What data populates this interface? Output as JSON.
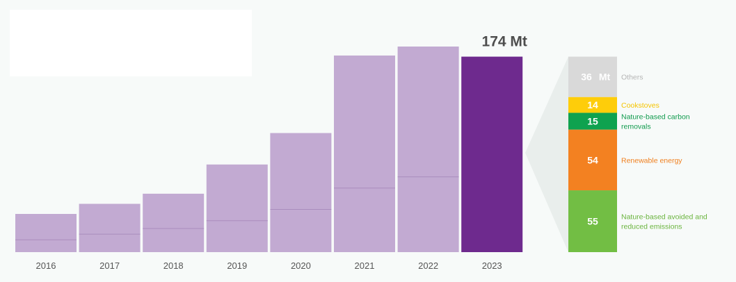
{
  "chart_data": [
    {
      "type": "bar",
      "categories": [
        "2016",
        "2017",
        "2018",
        "2019",
        "2020",
        "2021",
        "2022",
        "2023"
      ],
      "series": [
        {
          "values": [
            17,
            26,
            35,
            49,
            69,
            109,
            118,
            0
          ]
        },
        {
          "values": [
            11,
            16,
            21,
            28,
            38,
            57,
            67,
            0
          ]
        }
      ],
      "values": [
        34,
        43,
        52,
        78,
        106,
        175,
        183,
        174
      ],
      "highlight": {
        "category": "2023",
        "value": 174,
        "label": "174 Mt"
      },
      "ylim": [
        0,
        183
      ],
      "grid": false,
      "colors": {
        "bar": "#c2aad2",
        "highlight": "#6e2a8e",
        "divider": "#a98cbd"
      }
    },
    {
      "type": "bar",
      "stacked": true,
      "segments": [
        {
          "name": "Others",
          "value": 36,
          "value_label": "36",
          "unit": "Mt",
          "color": "#d9d9d9",
          "label_color": "#b5b5b5"
        },
        {
          "name": "Cookstoves",
          "value": 14,
          "value_label": "14",
          "color": "#fecd0a",
          "label_color": "#f5c400"
        },
        {
          "name": "Nature-based carbon removals",
          "value": 15,
          "value_label": "15",
          "color": "#0fa24f",
          "label_color": "#0f9a4c"
        },
        {
          "name": "Renewable energy",
          "value": 54,
          "value_label": "54",
          "color": "#f38121",
          "label_color": "#f08020"
        },
        {
          "name": "Nature-based avoided and reduced emissions",
          "value": 55,
          "value_label": "55",
          "color": "#72be44",
          "label_color": "#6ab43e"
        }
      ],
      "colors": {
        "connector": "#e9eeec"
      }
    }
  ]
}
